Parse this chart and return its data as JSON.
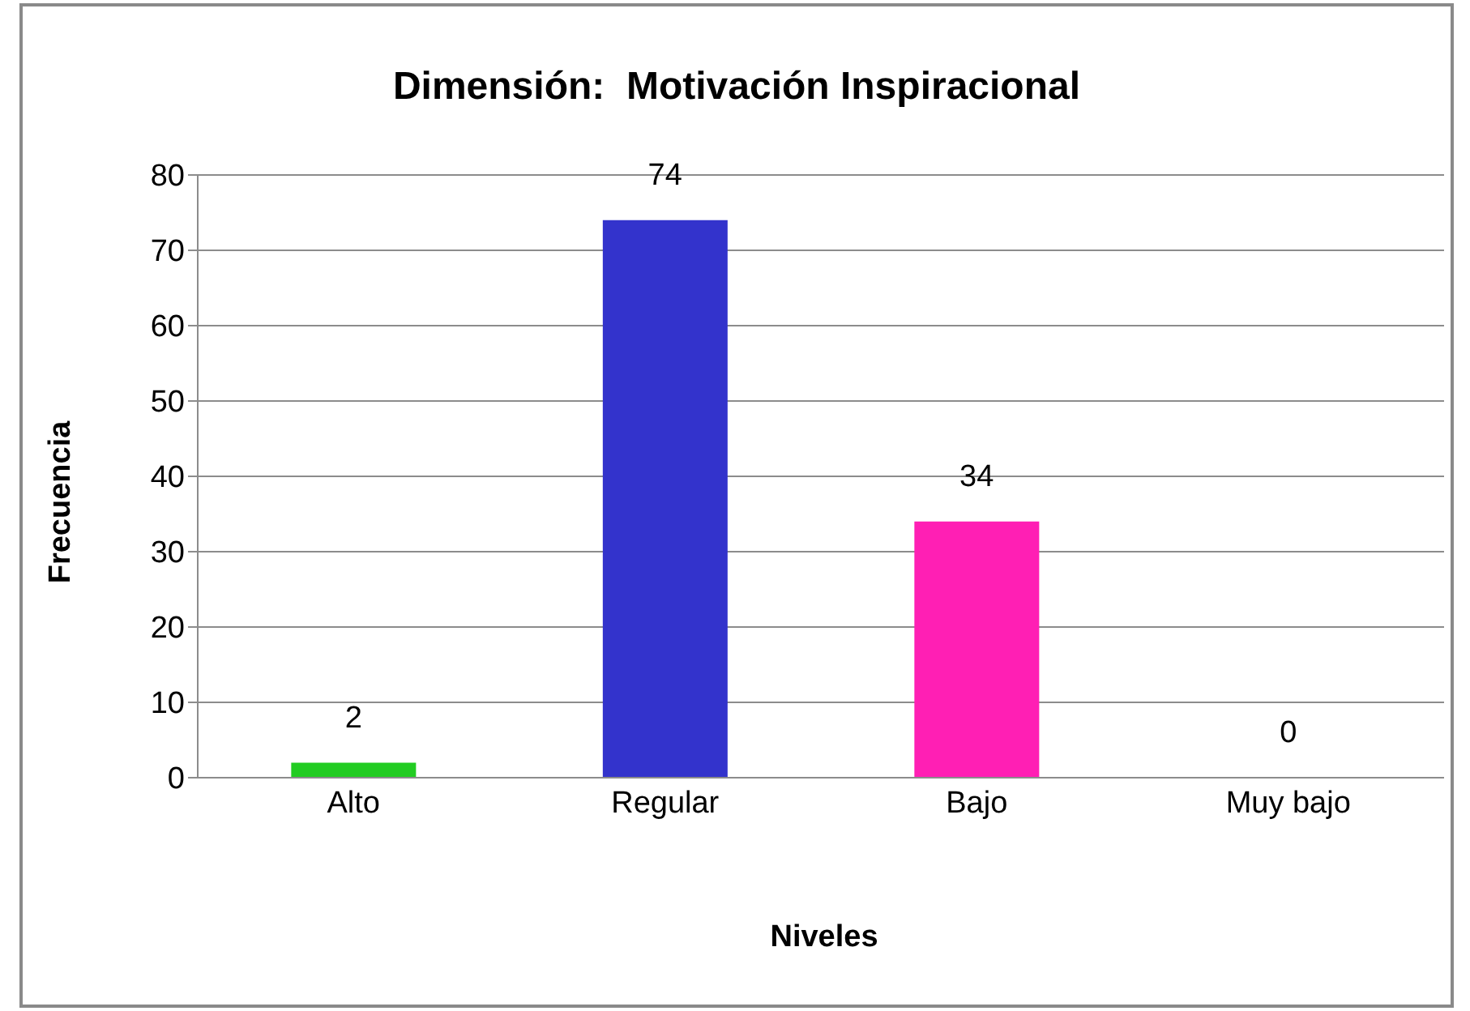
{
  "chart_data": {
    "type": "bar",
    "title": "Dimensión:  Motivación Inspiracional",
    "xlabel": "Niveles",
    "ylabel": "Frecuencia",
    "categories": [
      "Alto",
      "Regular",
      "Bajo",
      "Muy bajo"
    ],
    "values": [
      2,
      74,
      34,
      0
    ],
    "colors": [
      "#22cc22",
      "#3333cc",
      "#ff1fb4",
      "#888888"
    ],
    "ylim": [
      0,
      80
    ],
    "yticks": [
      0,
      10,
      20,
      30,
      40,
      50,
      60,
      70,
      80
    ],
    "grid": "y",
    "data_labels": true,
    "legend": false
  }
}
